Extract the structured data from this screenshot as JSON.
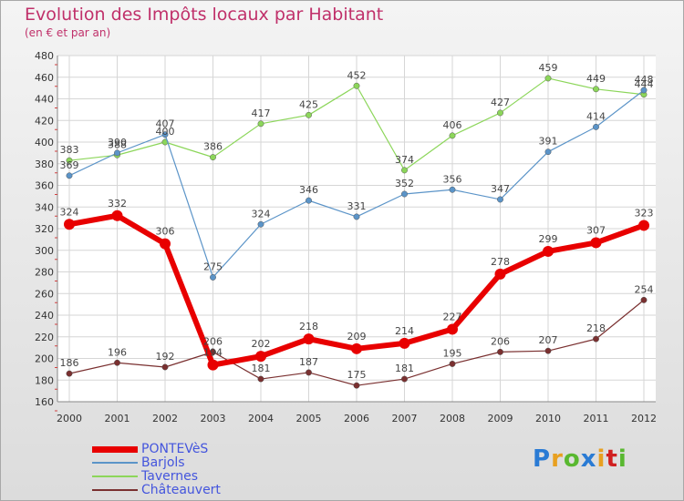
{
  "title": "Evolution des Impôts locaux par Habitant",
  "subtitle": "(en € et par an)",
  "brand": {
    "letters": [
      "P",
      "r",
      "o",
      "x",
      "i",
      "t",
      "i"
    ],
    "colors": [
      "#2a7bd4",
      "#e8a020",
      "#59b830",
      "#2a7bd4",
      "#e8a020",
      "#d02020",
      "#59b830"
    ]
  },
  "chart_data": {
    "type": "line",
    "x": [
      "2000",
      "2001",
      "2002",
      "2003",
      "2004",
      "2005",
      "2006",
      "2007",
      "2008",
      "2009",
      "2010",
      "2011",
      "2012"
    ],
    "ylim": [
      160,
      480
    ],
    "yticks": [
      "160",
      "180",
      "200",
      "220",
      "240",
      "260",
      "280",
      "300",
      "320",
      "340",
      "360",
      "380",
      "400",
      "420",
      "440",
      "460",
      "480"
    ],
    "grid": true,
    "legend_position": "bottom-left",
    "series": [
      {
        "name": "PONTEVèS",
        "color": "#e80000",
        "width": 6,
        "values": [
          324,
          332,
          306,
          194,
          202,
          218,
          209,
          214,
          227,
          278,
          299,
          307,
          323
        ],
        "labels": [
          "324",
          "332",
          "306",
          "194",
          "202",
          "218",
          "209",
          "214",
          "227",
          "278",
          "299",
          "307",
          "323"
        ]
      },
      {
        "name": "Barjols",
        "color": "#5b94c8",
        "width": 1.2,
        "values": [
          369,
          390,
          407,
          275,
          324,
          346,
          331,
          352,
          356,
          347,
          391,
          414,
          448
        ],
        "labels": [
          "369",
          "390",
          "407",
          "275",
          "324",
          "346",
          "331",
          "352",
          "356",
          "347",
          "391",
          "414",
          "448"
        ]
      },
      {
        "name": "Tavernes",
        "color": "#8cd65a",
        "width": 1.2,
        "values": [
          383,
          388,
          400,
          386,
          417,
          425,
          452,
          374,
          406,
          427,
          459,
          449,
          444
        ],
        "labels": [
          "383",
          "388",
          "400",
          "386",
          "417",
          "425",
          "452",
          "374",
          "406",
          "427",
          "459",
          "449",
          "444"
        ]
      },
      {
        "name": "Châteauvert",
        "color": "#7a3030",
        "width": 1.2,
        "values": [
          186,
          196,
          192,
          206,
          181,
          187,
          175,
          181,
          195,
          206,
          207,
          218,
          254
        ],
        "labels": [
          "186",
          "196",
          "192",
          "206",
          "181",
          "187",
          "175",
          "181",
          "195",
          "206",
          "207",
          "218",
          "254"
        ]
      }
    ]
  }
}
